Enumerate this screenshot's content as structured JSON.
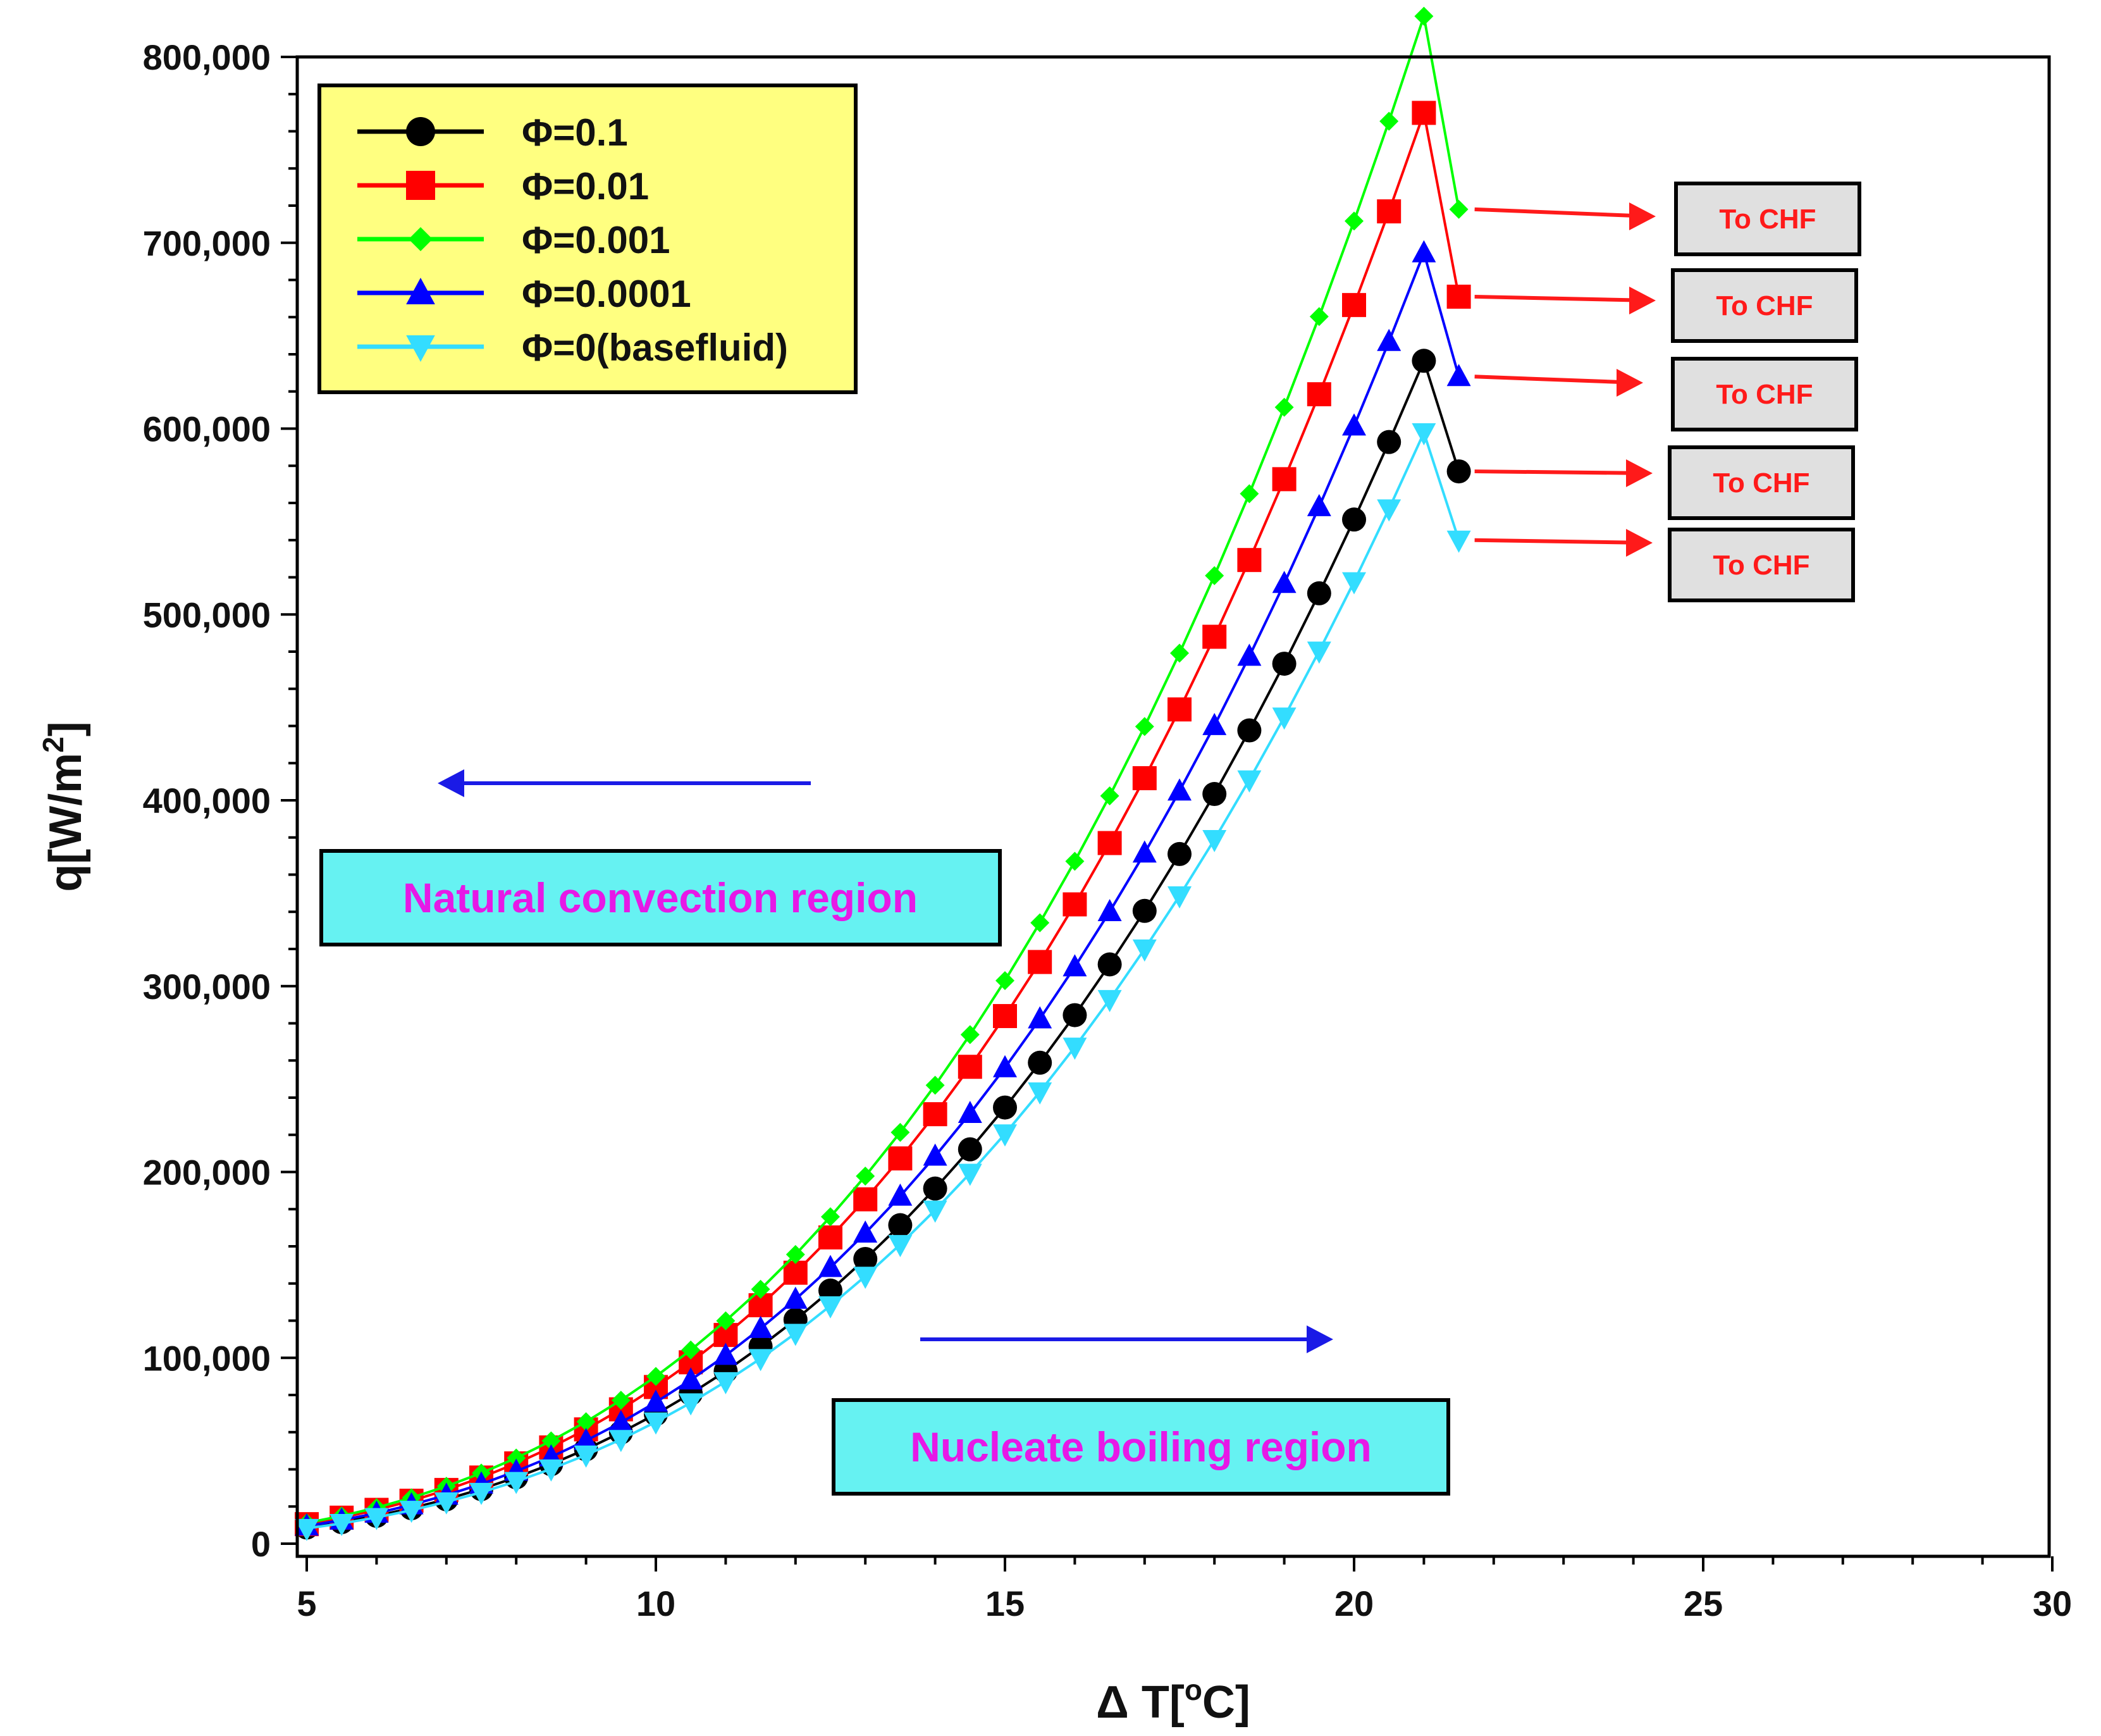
{
  "chart_data": {
    "type": "line",
    "title": "",
    "xlabel": "Δ T[",
    "xlabel_sup": "o",
    "xlabel_tail": "C]",
    "ylabel": "q[W/m",
    "ylabel_sup": "2",
    "ylabel_tail": "]",
    "xlim": [
      5,
      30
    ],
    "ylim": [
      0,
      800000
    ],
    "x_ticks": [
      5,
      10,
      15,
      20,
      25,
      30
    ],
    "x_tick_labels": [
      "5",
      "10",
      "15",
      "20",
      "25",
      "30"
    ],
    "y_ticks": [
      0,
      100000,
      200000,
      300000,
      400000,
      500000,
      600000,
      700000,
      800000
    ],
    "y_tick_labels": [
      "0",
      "100,000",
      "200,000",
      "300,000",
      "400,000",
      "500,000",
      "600,000",
      "700,000",
      "800,000"
    ],
    "x": [
      5,
      5.5,
      6,
      6.5,
      7,
      7.5,
      8,
      8.5,
      9,
      9.5,
      10,
      10.5,
      11,
      11.5,
      12,
      12.5,
      13,
      13.5,
      14,
      14.5,
      15,
      15.5,
      16,
      16.5,
      17,
      17.5,
      18,
      18.5,
      19,
      19.5,
      20,
      20.5,
      21,
      21.5
    ],
    "series": [
      {
        "name": "Φ=0.1",
        "color": "#000000",
        "marker": "circle",
        "values": [
          8700,
          11600,
          15000,
          19100,
          23900,
          29400,
          35700,
          42800,
          50800,
          59800,
          69700,
          80700,
          92800,
          106100,
          120500,
          136200,
          153200,
          171400,
          191100,
          212200,
          234700,
          258800,
          284400,
          311700,
          340500,
          371100,
          403400,
          437600,
          473500,
          511400,
          551100,
          592800,
          636500,
          577000
        ]
      },
      {
        "name": "Φ=0.01",
        "color": "#ff0000",
        "marker": "square",
        "values": [
          10500,
          14000,
          18200,
          23100,
          28900,
          35600,
          43200,
          51800,
          61500,
          72300,
          84300,
          97600,
          112300,
          128300,
          145800,
          164800,
          185300,
          207300,
          231100,
          256600,
          283900,
          313000,
          344000,
          377000,
          411900,
          448900,
          488000,
          529300,
          572800,
          618500,
          666500,
          716900,
          769900,
          671000
        ]
      },
      {
        "name": "Φ=0.001",
        "color": "#00ff00",
        "marker": "diamond",
        "values": [
          11200,
          14900,
          19400,
          24700,
          30900,
          38000,
          46100,
          55300,
          65600,
          77200,
          90000,
          104200,
          119900,
          136900,
          155600,
          175900,
          197800,
          221300,
          246700,
          273900,
          303000,
          334100,
          367200,
          402400,
          439700,
          479200,
          520900,
          565000,
          611500,
          660300,
          711700,
          765400,
          821900,
          718000
        ]
      },
      {
        "name": "Φ=0.0001",
        "color": "#0000ff",
        "marker": "triangle-up",
        "values": [
          9500,
          12700,
          16400,
          20900,
          26100,
          32100,
          39000,
          46700,
          55500,
          65200,
          76100,
          88100,
          101300,
          115800,
          131500,
          148600,
          167100,
          187000,
          208500,
          231500,
          256100,
          282400,
          310400,
          340100,
          371600,
          405000,
          440200,
          477500,
          516700,
          558000,
          601400,
          646900,
          694600,
          628000
        ]
      },
      {
        "name": "Φ=0(basefluid)",
        "color": "#33ddff",
        "marker": "triangle-down",
        "values": [
          8200,
          10900,
          14100,
          18000,
          22500,
          27600,
          33500,
          40200,
          47700,
          56100,
          65500,
          75800,
          87200,
          99600,
          113200,
          128000,
          143900,
          161000,
          179500,
          199300,
          220500,
          243100,
          267200,
          292800,
          320000,
          348600,
          378900,
          411000,
          444800,
          480300,
          517600,
          556800,
          597800,
          540000
        ]
      }
    ],
    "legend_position": "top-left",
    "annotations": [
      {
        "text": "Natural convection region",
        "arrow": "left"
      },
      {
        "text": "Nucleate boiling region",
        "arrow": "right"
      },
      {
        "text": "To CHF",
        "series": 2
      },
      {
        "text": "To CHF",
        "series": 1
      },
      {
        "text": "To CHF",
        "series": 3
      },
      {
        "text": "To CHF",
        "series": 0
      },
      {
        "text": "To CHF",
        "series": 4
      }
    ]
  },
  "colors": {
    "legend_bg": "#ffff80",
    "region_box_bg": "#66f2f2",
    "region_text": "#e619e6",
    "chf_box_bg": "#e0e0e0",
    "chf_text": "#ff1a1a",
    "arrow_blue": "#1a1ae6",
    "arrow_red": "#ff1a1a"
  }
}
